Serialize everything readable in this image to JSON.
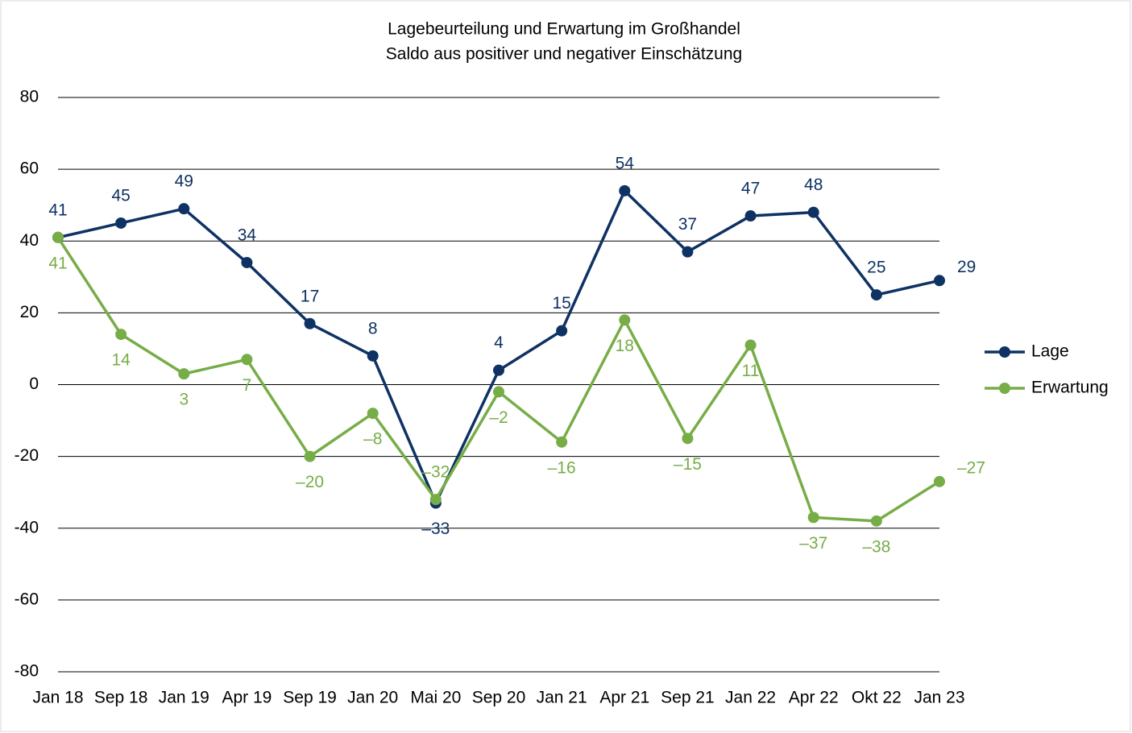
{
  "chart_data": {
    "type": "line",
    "title": "Lagebeurteilung und Erwartung im Großhandel",
    "subtitle": "Saldo aus positiver und negativer Einschätzung",
    "categories": [
      "Jan 18",
      "Sep 18",
      "Jan 19",
      "Apr 19",
      "Sep 19",
      "Jan 20",
      "Mai 20",
      "Sep 20",
      "Jan 21",
      "Apr 21",
      "Sep 21",
      "Jan 22",
      "Apr 22",
      "Okt 22",
      "Jan 23"
    ],
    "series": [
      {
        "name": "Lage",
        "color": "#0e3263",
        "values": [
          41,
          45,
          49,
          34,
          17,
          8,
          -33,
          4,
          15,
          54,
          37,
          47,
          48,
          25,
          29
        ],
        "value_labels": [
          "41",
          "45",
          "49",
          "34",
          "17",
          "8",
          "–33",
          "4",
          "15",
          "54",
          "37",
          "47",
          "48",
          "25",
          "29"
        ]
      },
      {
        "name": "Erwartung",
        "color": "#77ad47",
        "values": [
          41,
          14,
          3,
          7,
          -20,
          -8,
          -32,
          -2,
          -16,
          18,
          -15,
          11,
          -37,
          -38,
          -27
        ],
        "value_labels": [
          "41",
          "14",
          "3",
          "7",
          "–20",
          "–8",
          "–32",
          "–2",
          "–16",
          "18",
          "–15",
          "11",
          "–37",
          "–38",
          "–27"
        ]
      }
    ],
    "ylim": [
      -80,
      80
    ],
    "yticks": [
      -80,
      -60,
      -40,
      -20,
      0,
      20,
      40,
      60,
      80
    ],
    "grid": true,
    "legend": "right"
  }
}
